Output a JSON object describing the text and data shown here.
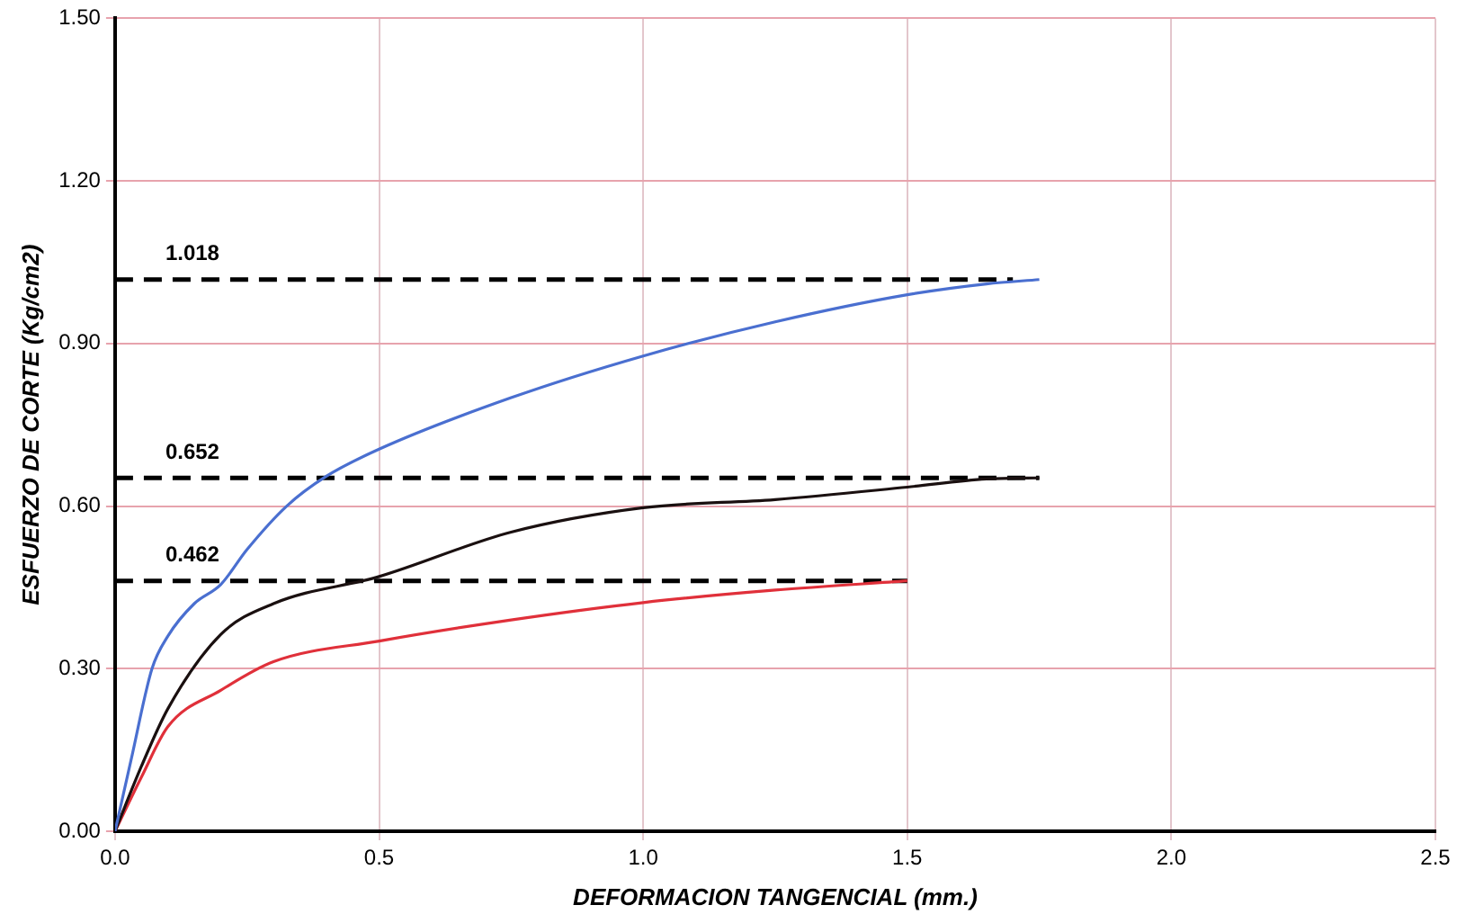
{
  "chart_data": {
    "type": "line",
    "xlabel": "DEFORMACION TANGENCIAL (mm.)",
    "ylabel": "ESFUERZO DE CORTE (Kg/cm2)",
    "xlim": [
      0,
      2.5
    ],
    "ylim": [
      0,
      1.5
    ],
    "xticks": [
      {
        "value": 0,
        "label": "0.0"
      },
      {
        "value": 0.5,
        "label": "0.5"
      },
      {
        "value": 1,
        "label": "1.0"
      },
      {
        "value": 1.5,
        "label": "1.5"
      },
      {
        "value": 2,
        "label": "2.0"
      },
      {
        "value": 2.5,
        "label": "2.5"
      }
    ],
    "yticks": [
      {
        "value": 0,
        "label": "0.00"
      },
      {
        "value": 0.3,
        "label": "0.30"
      },
      {
        "value": 0.6,
        "label": "0.60"
      },
      {
        "value": 0.9,
        "label": "0.90"
      },
      {
        "value": 1.2,
        "label": "1.20"
      },
      {
        "value": 1.5,
        "label": "1.50"
      }
    ],
    "grid": true,
    "legend": false,
    "marker": "none",
    "line_style": "solid",
    "series": [
      {
        "color": "#4a6fd0",
        "x": [
          0,
          0.03,
          0.07,
          0.1,
          0.15,
          0.2,
          0.25,
          0.325,
          0.4,
          0.5,
          0.75,
          1.0,
          1.25,
          1.5,
          1.65,
          1.75
        ],
        "values": [
          0,
          0.13,
          0.3,
          0.36,
          0.42,
          0.455,
          0.52,
          0.6,
          0.655,
          0.705,
          0.8,
          0.877,
          0.94,
          0.99,
          1.01,
          1.018
        ]
      },
      {
        "color": "#1a1010",
        "x": [
          0,
          0.05,
          0.1,
          0.2,
          0.3,
          0.5,
          0.75,
          1.0,
          1.25,
          1.5,
          1.65,
          1.75
        ],
        "values": [
          0,
          0.12,
          0.226,
          0.363,
          0.42,
          0.47,
          0.552,
          0.597,
          0.612,
          0.635,
          0.65,
          0.652
        ]
      },
      {
        "color": "#e0303a",
        "x": [
          0,
          0.05,
          0.1,
          0.2,
          0.3,
          0.5,
          0.75,
          1.0,
          1.25,
          1.5
        ],
        "values": [
          0,
          0.1,
          0.193,
          0.26,
          0.313,
          0.351,
          0.39,
          0.422,
          0.445,
          0.462
        ]
      },
      {
        "color": "#000000",
        "line_style": "dashed",
        "x": [
          0,
          1.7
        ],
        "values": [
          1.018,
          1.018
        ]
      },
      {
        "color": "#000000",
        "line_style": "dashed",
        "x": [
          0,
          1.75
        ],
        "values": [
          0.652,
          0.652
        ]
      },
      {
        "color": "#000000",
        "line_style": "dashed",
        "x": [
          0,
          1.5
        ],
        "values": [
          0.462,
          0.462
        ]
      }
    ],
    "annotations": [
      "1.018",
      "0.652",
      "0.462"
    ]
  }
}
